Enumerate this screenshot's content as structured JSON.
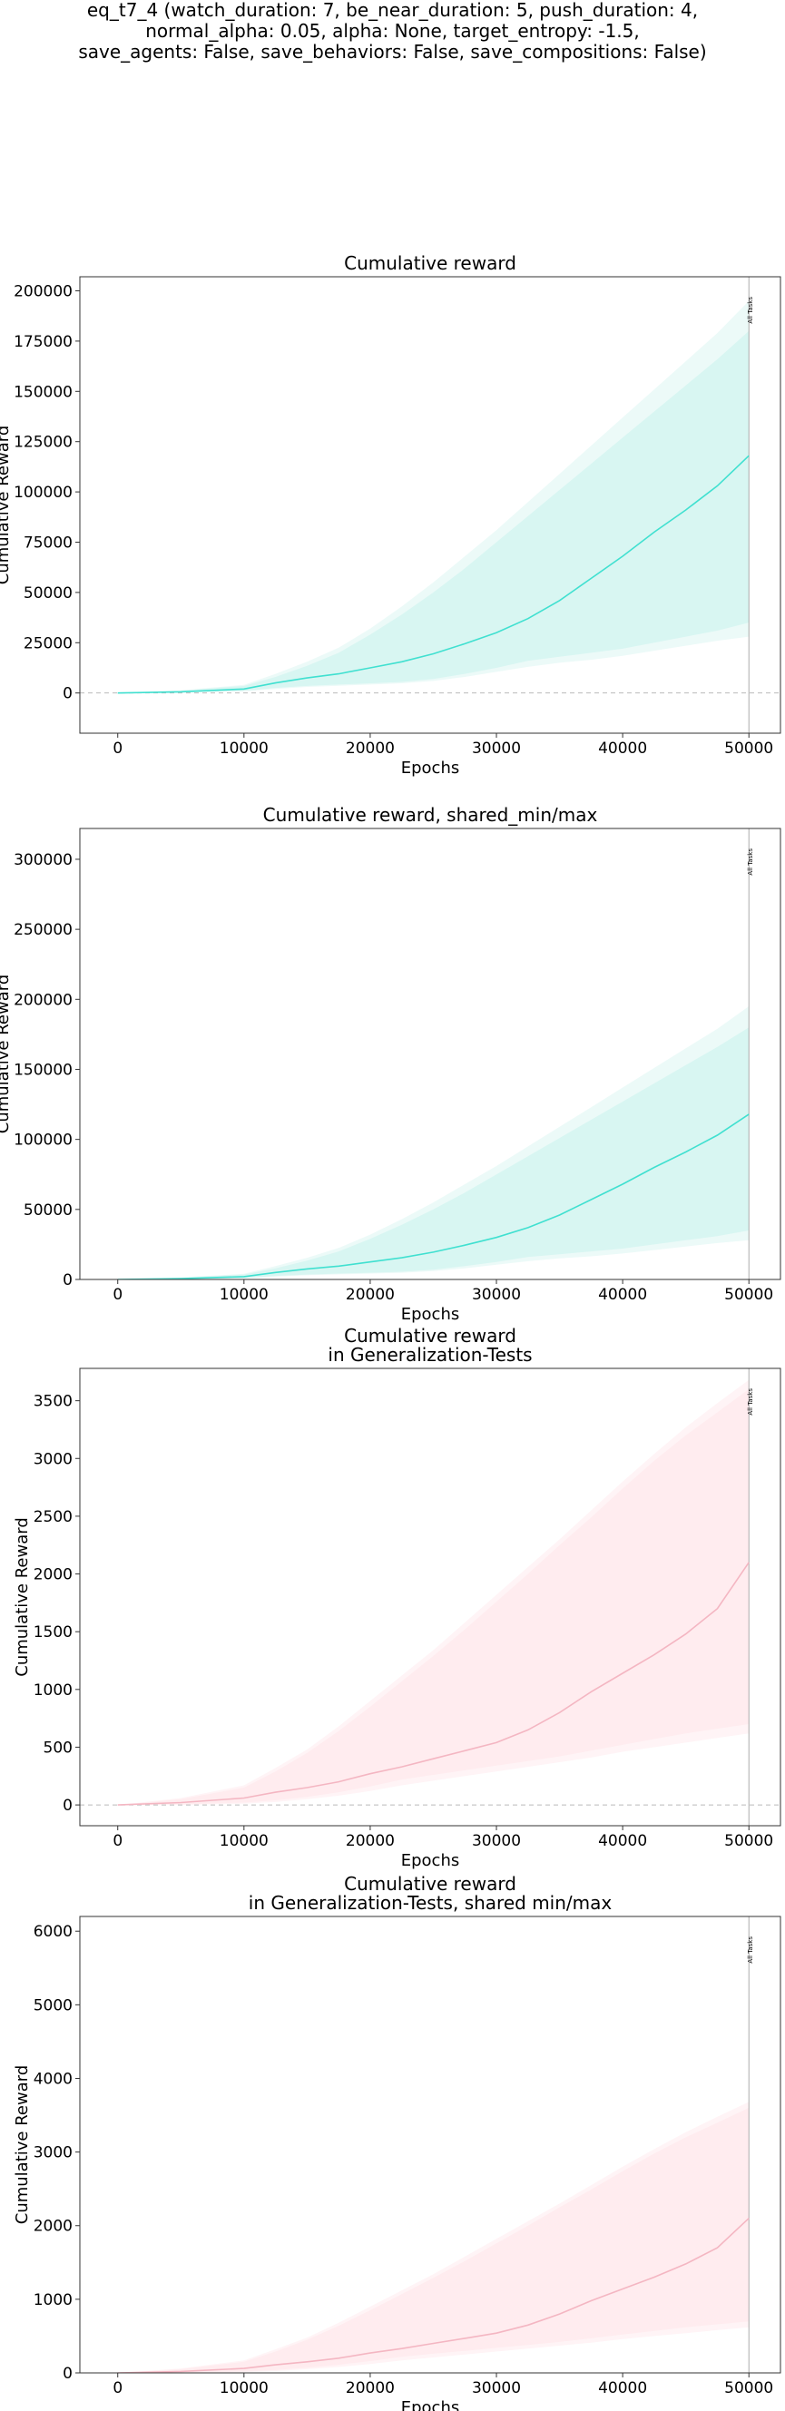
{
  "suptitle": [
    "eq_t7_4 (watch_duration: 7, be_near_duration: 5, push_duration: 4,",
    "normal_alpha: 0.05, alpha: None, target_entropy: -1.5,",
    "save_agents: False, save_behaviors: False, save_compositions: False)"
  ],
  "colors": {
    "teal_line": "#40e0d0",
    "teal_band": "#d8f6f2",
    "teal_band_outer": "#ecfaf8",
    "pink_line": "#f4b6c2",
    "pink_band": "#ffecef",
    "pink_band_outer": "#fff4f6"
  },
  "chart_data": [
    {
      "type": "line",
      "title": [
        "Cumulative reward"
      ],
      "xlabel": "Epochs",
      "ylabel": "Cumulative Reward",
      "xlim": [
        -3000,
        52500
      ],
      "ylim": [
        -20000,
        207000
      ],
      "xticks": [
        0,
        10000,
        20000,
        30000,
        40000,
        50000
      ],
      "yticks": [
        0,
        25000,
        50000,
        75000,
        100000,
        125000,
        150000,
        175000,
        200000
      ],
      "vline": {
        "x": 50000,
        "label": "All Tasks"
      },
      "hline": 0,
      "color": "teal",
      "series": [
        {
          "x": [
            0,
            5000,
            10000,
            12500,
            15000,
            17500,
            20000,
            22500,
            25000,
            27500,
            30000,
            32500,
            35000,
            37500,
            40000,
            42500,
            45000,
            47500,
            50000
          ],
          "mean": [
            0,
            600,
            2000,
            5000,
            7500,
            9500,
            12500,
            15500,
            19500,
            24500,
            30000,
            37000,
            46000,
            57000,
            68000,
            80000,
            91000,
            103000,
            118000
          ],
          "lower": [
            0,
            300,
            1000,
            2500,
            3500,
            4200,
            4800,
            5500,
            7000,
            9500,
            12500,
            16000,
            18000,
            20000,
            22000,
            25000,
            28000,
            31000,
            35000
          ],
          "upper": [
            0,
            1200,
            3500,
            8000,
            13500,
            20000,
            29000,
            39000,
            50000,
            62000,
            75000,
            88000,
            101000,
            114000,
            127000,
            140000,
            153000,
            166000,
            180000
          ],
          "min": [
            0,
            200,
            800,
            2000,
            3000,
            3600,
            4200,
            4800,
            6000,
            8000,
            10500,
            13000,
            15000,
            16500,
            18500,
            21000,
            23500,
            26000,
            28000
          ],
          "max": [
            0,
            1400,
            4000,
            9500,
            15500,
            22500,
            32000,
            43000,
            55000,
            68000,
            81000,
            95000,
            109000,
            123000,
            137000,
            151000,
            165000,
            179000,
            195000
          ]
        }
      ]
    },
    {
      "type": "line",
      "title": [
        "Cumulative reward, shared_min/max"
      ],
      "xlabel": "Epochs",
      "ylabel": "Cumulative Reward",
      "xlim": [
        -3000,
        52500
      ],
      "ylim": [
        0,
        322000
      ],
      "xticks": [
        0,
        10000,
        20000,
        30000,
        40000,
        50000
      ],
      "yticks": [
        0,
        50000,
        100000,
        150000,
        200000,
        250000,
        300000
      ],
      "vline": {
        "x": 50000,
        "label": "All Tasks"
      },
      "hline": null,
      "color": "teal",
      "series": [
        {
          "x": [
            0,
            5000,
            10000,
            12500,
            15000,
            17500,
            20000,
            22500,
            25000,
            27500,
            30000,
            32500,
            35000,
            37500,
            40000,
            42500,
            45000,
            47500,
            50000
          ],
          "mean": [
            0,
            600,
            2000,
            5000,
            7500,
            9500,
            12500,
            15500,
            19500,
            24500,
            30000,
            37000,
            46000,
            57000,
            68000,
            80000,
            91000,
            103000,
            118000
          ],
          "lower": [
            0,
            300,
            1000,
            2500,
            3500,
            4200,
            4800,
            5500,
            7000,
            9500,
            12500,
            16000,
            18000,
            20000,
            22000,
            25000,
            28000,
            31000,
            35000
          ],
          "upper": [
            0,
            1200,
            3500,
            8000,
            13500,
            20000,
            29000,
            39000,
            50000,
            62000,
            75000,
            88000,
            101000,
            114000,
            127000,
            140000,
            153000,
            166000,
            180000
          ],
          "min": [
            0,
            200,
            800,
            2000,
            3000,
            3600,
            4200,
            4800,
            6000,
            8000,
            10500,
            13000,
            15000,
            16500,
            18500,
            21000,
            23500,
            26000,
            28000
          ],
          "max": [
            0,
            1400,
            4000,
            9500,
            15500,
            22500,
            32000,
            43000,
            55000,
            68000,
            81000,
            95000,
            109000,
            123000,
            137000,
            151000,
            165000,
            179000,
            195000
          ]
        }
      ]
    },
    {
      "type": "line",
      "title": [
        "Cumulative reward",
        "in Generalization-Tests"
      ],
      "xlabel": "Epochs",
      "ylabel": "Cumulative Reward",
      "xlim": [
        -3000,
        52500
      ],
      "ylim": [
        -180,
        3780
      ],
      "xticks": [
        0,
        10000,
        20000,
        30000,
        40000,
        50000
      ],
      "yticks": [
        0,
        500,
        1000,
        1500,
        2000,
        2500,
        3000,
        3500
      ],
      "vline": {
        "x": 50000,
        "label": "All Tasks"
      },
      "hline": 0,
      "color": "pink",
      "series": [
        {
          "x": [
            0,
            5000,
            10000,
            12500,
            15000,
            17500,
            20000,
            22500,
            25000,
            27500,
            30000,
            32500,
            35000,
            37500,
            40000,
            42500,
            45000,
            47500,
            50000
          ],
          "mean": [
            0,
            20,
            60,
            110,
            150,
            200,
            270,
            330,
            400,
            470,
            540,
            650,
            800,
            980,
            1140,
            1300,
            1480,
            1700,
            2100
          ],
          "lower": [
            0,
            5,
            20,
            40,
            70,
            110,
            160,
            220,
            260,
            300,
            340,
            380,
            420,
            470,
            520,
            570,
            620,
            660,
            700
          ],
          "upper": [
            0,
            50,
            150,
            290,
            450,
            640,
            850,
            1070,
            1290,
            1520,
            1760,
            2000,
            2250,
            2490,
            2740,
            2980,
            3200,
            3400,
            3600
          ],
          "min": [
            0,
            0,
            10,
            25,
            50,
            80,
            120,
            170,
            210,
            250,
            290,
            330,
            370,
            410,
            460,
            500,
            540,
            580,
            620
          ],
          "max": [
            0,
            60,
            170,
            320,
            480,
            680,
            900,
            1120,
            1340,
            1580,
            1820,
            2060,
            2300,
            2550,
            2800,
            3040,
            3270,
            3480,
            3680
          ]
        }
      ]
    },
    {
      "type": "line",
      "title": [
        "Cumulative reward",
        "in Generalization-Tests, shared min/max"
      ],
      "xlabel": "Epochs",
      "ylabel": "Cumulative Reward",
      "xlim": [
        -3000,
        52500
      ],
      "ylim": [
        0,
        6200
      ],
      "xticks": [
        0,
        10000,
        20000,
        30000,
        40000,
        50000
      ],
      "yticks": [
        0,
        1000,
        2000,
        3000,
        4000,
        5000,
        6000
      ],
      "vline": {
        "x": 50000,
        "label": "All Tasks"
      },
      "hline": null,
      "color": "pink",
      "series": [
        {
          "x": [
            0,
            5000,
            10000,
            12500,
            15000,
            17500,
            20000,
            22500,
            25000,
            27500,
            30000,
            32500,
            35000,
            37500,
            40000,
            42500,
            45000,
            47500,
            50000
          ],
          "mean": [
            0,
            20,
            60,
            110,
            150,
            200,
            270,
            330,
            400,
            470,
            540,
            650,
            800,
            980,
            1140,
            1300,
            1480,
            1700,
            2100
          ],
          "lower": [
            0,
            5,
            20,
            40,
            70,
            110,
            160,
            220,
            260,
            300,
            340,
            380,
            420,
            470,
            520,
            570,
            620,
            660,
            700
          ],
          "upper": [
            0,
            50,
            150,
            290,
            450,
            640,
            850,
            1070,
            1290,
            1520,
            1760,
            2000,
            2250,
            2490,
            2740,
            2980,
            3200,
            3400,
            3600
          ],
          "min": [
            0,
            0,
            10,
            25,
            50,
            80,
            120,
            170,
            210,
            250,
            290,
            330,
            370,
            410,
            460,
            500,
            540,
            580,
            620
          ],
          "max": [
            0,
            60,
            170,
            320,
            480,
            680,
            900,
            1120,
            1340,
            1580,
            1820,
            2060,
            2300,
            2550,
            2800,
            3040,
            3270,
            3480,
            3680
          ]
        }
      ]
    }
  ]
}
